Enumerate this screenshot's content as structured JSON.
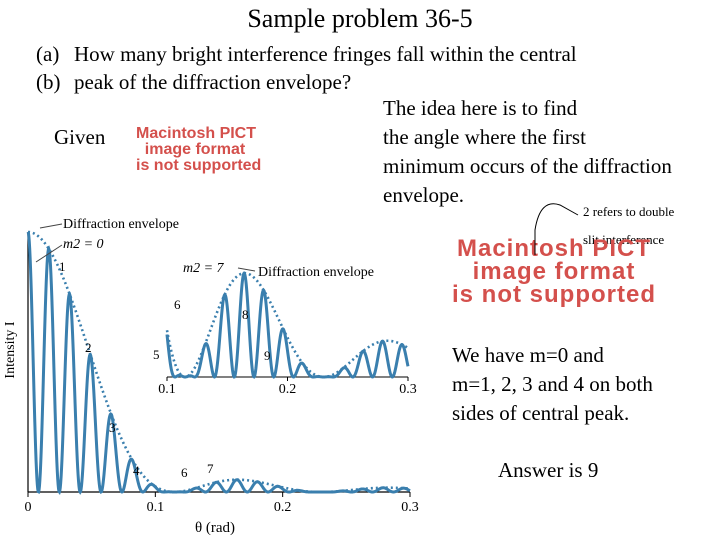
{
  "title": "Sample problem 36-5",
  "question": {
    "a_marker": "(a)",
    "a_text": "How many bright interference fringes fall within the central",
    "b_marker": "(b)",
    "b_text": "peak of the diffraction envelope?"
  },
  "given_label": "Given",
  "pict_placeholder_1": [
    "Macintosh PICT",
    "image format",
    "is not supported"
  ],
  "pict_placeholder_2": [
    "Macintosh PICT",
    "image format",
    "is not supported"
  ],
  "idea_lines": [
    "The idea here is to find",
    " the angle where the first",
    "minimum occurs of the diffraction",
    " envelope."
  ],
  "note_double_slit": [
    "2 refers to double",
    "slit interference"
  ],
  "have_lines": [
    "We have  m=0  and",
    " m=1, 2, 3 and 4 on both",
    "sides of central peak."
  ],
  "answer": "Answer is 9",
  "colors": {
    "curve": "#3a7fae",
    "text": "#000000",
    "pict": "#d4504c"
  },
  "chart_data": [
    {
      "type": "line",
      "title": "",
      "xlabel": "θ (rad)",
      "ylabel": "Intensity I",
      "x_ticks": [
        "0",
        "0.1",
        "0.2",
        "0.3"
      ],
      "xlim": [
        0,
        0.3
      ],
      "annotations": {
        "envelope": "Diffraction envelope",
        "m2_zero": "m2 = 0",
        "orders": [
          "1",
          "2",
          "3",
          "4",
          "6",
          "7"
        ]
      },
      "series": [
        {
          "name": "Diffraction envelope",
          "style": "dotted"
        }
      ]
    },
    {
      "type": "line",
      "title": "",
      "x_ticks": [
        "0.1",
        "0.2",
        "0.3"
      ],
      "xlim": [
        0.1,
        0.3
      ],
      "annotations": {
        "envelope": "Diffraction envelope",
        "m2_seven": "m2 = 7",
        "orders": [
          "5",
          "6",
          "8",
          "9"
        ]
      }
    }
  ]
}
